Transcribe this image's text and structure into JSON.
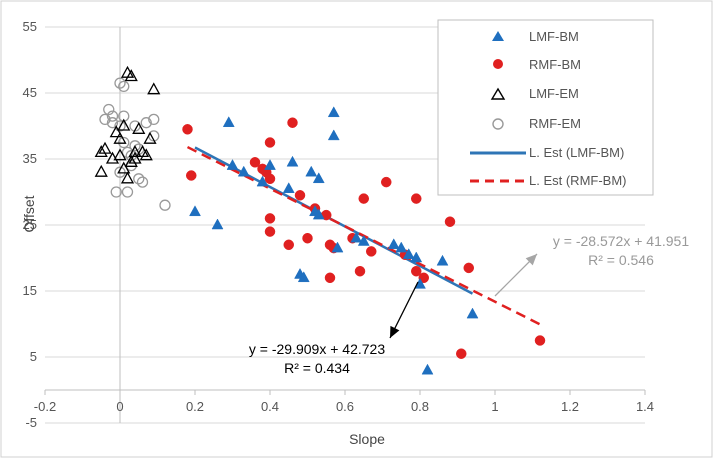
{
  "chart_data": {
    "type": "scatter",
    "xlabel": "Slope",
    "ylabel": "Offset",
    "xlim": [
      -0.2,
      1.4
    ],
    "ylim": [
      -5,
      55
    ],
    "x_ticks": [
      "-0.2",
      "0",
      "0.2",
      "0.4",
      "0.6",
      "0.8",
      "1",
      "1.2",
      "1.4"
    ],
    "y_ticks": [
      "-5",
      "5",
      "15",
      "25",
      "35",
      "45",
      "55"
    ],
    "grid": "horizontal",
    "legend_position": "top-right",
    "series": [
      {
        "name": "LMF-BM",
        "marker": "filled-triangle",
        "color": "#1f6fbf",
        "points": [
          [
            0.2,
            27
          ],
          [
            0.26,
            25
          ],
          [
            0.29,
            40.5
          ],
          [
            0.3,
            34
          ],
          [
            0.33,
            33
          ],
          [
            0.38,
            31.5
          ],
          [
            0.4,
            34
          ],
          [
            0.45,
            30.5
          ],
          [
            0.46,
            34.5
          ],
          [
            0.48,
            17.5
          ],
          [
            0.49,
            17
          ],
          [
            0.51,
            33
          ],
          [
            0.52,
            27
          ],
          [
            0.53,
            26.5
          ],
          [
            0.53,
            32
          ],
          [
            0.57,
            42
          ],
          [
            0.57,
            38.5
          ],
          [
            0.58,
            21.5
          ],
          [
            0.63,
            23
          ],
          [
            0.65,
            22.5
          ],
          [
            0.73,
            22
          ],
          [
            0.75,
            21.5
          ],
          [
            0.77,
            20.5
          ],
          [
            0.79,
            20
          ],
          [
            0.8,
            16
          ],
          [
            0.82,
            3
          ],
          [
            0.86,
            19.5
          ],
          [
            0.94,
            11.5
          ]
        ]
      },
      {
        "name": "RMF-BM",
        "marker": "filled-circle",
        "color": "#e02020",
        "points": [
          [
            0.18,
            39.5
          ],
          [
            0.19,
            32.5
          ],
          [
            0.36,
            34.5
          ],
          [
            0.38,
            33.5
          ],
          [
            0.39,
            33
          ],
          [
            0.4,
            37.5
          ],
          [
            0.4,
            32
          ],
          [
            0.4,
            26
          ],
          [
            0.4,
            24
          ],
          [
            0.45,
            22
          ],
          [
            0.46,
            40.5
          ],
          [
            0.48,
            29.5
          ],
          [
            0.5,
            23
          ],
          [
            0.52,
            27.5
          ],
          [
            0.55,
            26.5
          ],
          [
            0.56,
            22
          ],
          [
            0.56,
            17
          ],
          [
            0.57,
            21.5
          ],
          [
            0.62,
            23
          ],
          [
            0.64,
            18
          ],
          [
            0.65,
            29
          ],
          [
            0.67,
            21
          ],
          [
            0.71,
            31.5
          ],
          [
            0.76,
            20.5
          ],
          [
            0.79,
            29
          ],
          [
            0.79,
            18
          ],
          [
            0.81,
            17
          ],
          [
            0.88,
            25.5
          ],
          [
            0.91,
            5.5
          ],
          [
            0.93,
            18.5
          ],
          [
            1.12,
            7.5
          ]
        ]
      },
      {
        "name": "LMF-EM",
        "marker": "open-triangle",
        "color": "#000000",
        "points": [
          [
            -0.05,
            33
          ],
          [
            -0.05,
            36
          ],
          [
            -0.04,
            36.5
          ],
          [
            -0.02,
            35
          ],
          [
            -0.01,
            39
          ],
          [
            0.0,
            38
          ],
          [
            0.0,
            35.5
          ],
          [
            0.01,
            33.5
          ],
          [
            0.01,
            40
          ],
          [
            0.02,
            32
          ],
          [
            0.02,
            48
          ],
          [
            0.03,
            47.5
          ],
          [
            0.03,
            34.5
          ],
          [
            0.04,
            36
          ],
          [
            0.04,
            35
          ],
          [
            0.05,
            39.5
          ],
          [
            0.06,
            36
          ],
          [
            0.07,
            35.5
          ],
          [
            0.08,
            38
          ],
          [
            0.09,
            45.5
          ]
        ]
      },
      {
        "name": "RMF-EM",
        "marker": "open-circle",
        "color": "#999999",
        "points": [
          [
            -0.04,
            41
          ],
          [
            -0.03,
            42.5
          ],
          [
            -0.02,
            41.5
          ],
          [
            -0.02,
            40.5
          ],
          [
            -0.01,
            30
          ],
          [
            0.0,
            40
          ],
          [
            0.0,
            46.5
          ],
          [
            0.0,
            33
          ],
          [
            0.01,
            46
          ],
          [
            0.01,
            41.5
          ],
          [
            0.01,
            37.5
          ],
          [
            0.02,
            36
          ],
          [
            0.02,
            30
          ],
          [
            0.03,
            35.5
          ],
          [
            0.03,
            34
          ],
          [
            0.04,
            40
          ],
          [
            0.04,
            37
          ],
          [
            0.05,
            32
          ],
          [
            0.05,
            36.5
          ],
          [
            0.06,
            31.5
          ],
          [
            0.07,
            40.5
          ],
          [
            0.09,
            41
          ],
          [
            0.09,
            38.5
          ],
          [
            0.12,
            28
          ]
        ]
      }
    ],
    "trendlines": [
      {
        "name": "L. Est (LMF-BM)",
        "color": "#2e75b6",
        "style": "solid",
        "slope": -29.909,
        "intercept": 42.723,
        "x_range": [
          0.2,
          0.94
        ],
        "equation": "y = -29.909x + 42.723",
        "r2": "R² = 0.434"
      },
      {
        "name": "L. Est (RMF-BM)",
        "color": "#e02020",
        "style": "dashed",
        "slope": -28.572,
        "intercept": 41.951,
        "x_range": [
          0.18,
          1.12
        ],
        "equation": "y = -28.572x + 41.951",
        "r2": "R² = 0.546"
      }
    ],
    "annotations": [
      {
        "text": "y = -29.909x + 42.723",
        "r2": "R² = 0.434",
        "color": "#000000"
      },
      {
        "text": "y = -28.572x + 41.951",
        "r2": "R² = 0.546",
        "color": "#999999"
      }
    ]
  }
}
